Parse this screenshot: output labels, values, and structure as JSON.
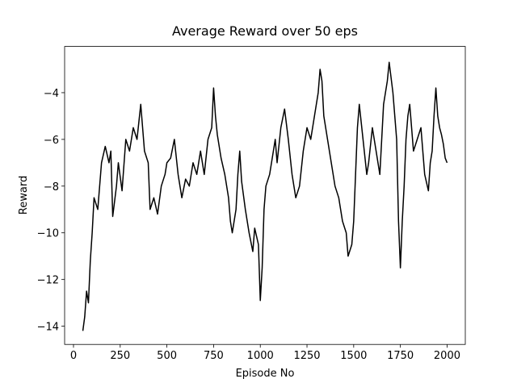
{
  "chart_data": {
    "type": "line",
    "title": "Average Reward over 50 eps",
    "x_label": "Episode No",
    "y_label": "Reward",
    "x": [
      50,
      60,
      70,
      80,
      90,
      100,
      110,
      130,
      150,
      170,
      190,
      200,
      210,
      230,
      240,
      260,
      280,
      300,
      320,
      340,
      360,
      380,
      400,
      410,
      430,
      450,
      470,
      490,
      500,
      520,
      540,
      560,
      580,
      600,
      620,
      640,
      660,
      680,
      700,
      720,
      740,
      750,
      760,
      770,
      790,
      810,
      830,
      840,
      850,
      870,
      880,
      890,
      900,
      920,
      940,
      960,
      970,
      990,
      1000,
      1010,
      1020,
      1030,
      1050,
      1070,
      1080,
      1090,
      1110,
      1130,
      1150,
      1170,
      1190,
      1210,
      1230,
      1250,
      1270,
      1290,
      1310,
      1320,
      1330,
      1340,
      1360,
      1380,
      1400,
      1420,
      1440,
      1460,
      1470,
      1490,
      1500,
      1510,
      1520,
      1530,
      1550,
      1570,
      1580,
      1600,
      1620,
      1640,
      1650,
      1660,
      1680,
      1690,
      1710,
      1730,
      1740,
      1750,
      1760,
      1770,
      1780,
      1790,
      1800,
      1810,
      1820,
      1840,
      1860,
      1880,
      1900,
      1910,
      1920,
      1930,
      1940,
      1950,
      1960,
      1970,
      1980,
      1990,
      2000
    ],
    "series": [
      {
        "name": "reward",
        "color": "#000000",
        "values": [
          -14.2,
          -13.6,
          -12.5,
          -13.0,
          -11.2,
          -10.0,
          -8.5,
          -9.0,
          -7.0,
          -6.3,
          -7.0,
          -6.5,
          -9.3,
          -8.0,
          -7.0,
          -8.2,
          -6.0,
          -6.5,
          -5.5,
          -6.0,
          -4.5,
          -6.5,
          -7.0,
          -9.0,
          -8.5,
          -9.2,
          -8.0,
          -7.5,
          -7.0,
          -6.8,
          -6.0,
          -7.5,
          -8.5,
          -7.7,
          -8.0,
          -7.0,
          -7.5,
          -6.5,
          -7.5,
          -6.0,
          -5.5,
          -3.8,
          -5.0,
          -5.8,
          -6.8,
          -7.5,
          -8.5,
          -9.5,
          -10.0,
          -9.0,
          -7.5,
          -6.5,
          -7.8,
          -9.0,
          -10.0,
          -10.8,
          -9.8,
          -10.5,
          -12.9,
          -11.5,
          -9.0,
          -8.0,
          -7.5,
          -6.5,
          -6.0,
          -7.0,
          -5.5,
          -4.7,
          -6.0,
          -7.5,
          -8.5,
          -8.0,
          -6.5,
          -5.5,
          -6.0,
          -5.0,
          -4.0,
          -3.0,
          -3.5,
          -5.0,
          -6.0,
          -7.0,
          -8.0,
          -8.5,
          -9.5,
          -10.0,
          -11.0,
          -10.5,
          -9.5,
          -7.5,
          -5.5,
          -4.5,
          -6.0,
          -7.5,
          -7.0,
          -5.5,
          -6.5,
          -7.5,
          -6.0,
          -4.5,
          -3.5,
          -2.7,
          -4.0,
          -6.0,
          -9.5,
          -11.5,
          -9.5,
          -8.0,
          -6.0,
          -5.0,
          -4.5,
          -5.5,
          -6.5,
          -6.0,
          -5.5,
          -7.5,
          -8.2,
          -7.0,
          -6.5,
          -5.0,
          -3.8,
          -5.0,
          -5.5,
          -5.8,
          -6.2,
          -6.8,
          -7.0
        ]
      }
    ],
    "xlim": [
      -47.5,
      2097.5
    ],
    "ylim": [
      -14.78,
      -2.02
    ],
    "xticks": [
      0,
      250,
      500,
      750,
      1000,
      1250,
      1500,
      1750,
      2000
    ],
    "yticks": [
      {
        "value": -14,
        "label": "−14"
      },
      {
        "value": -12,
        "label": "−12"
      },
      {
        "value": -10,
        "label": "−10"
      },
      {
        "value": -8,
        "label": "−8"
      },
      {
        "value": -6,
        "label": "−6"
      },
      {
        "value": -4,
        "label": "−4"
      }
    ],
    "grid": false
  }
}
